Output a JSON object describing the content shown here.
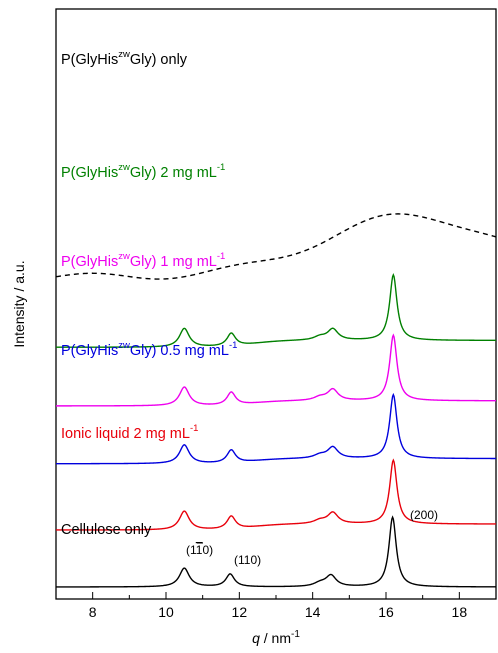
{
  "chart_data": {
    "type": "line",
    "xlabel": "q / nm⁻¹",
    "ylabel": "Intensity / a.u.",
    "xlim": [
      7,
      19
    ],
    "x_ticks": [
      8,
      10,
      12,
      14,
      16,
      18
    ],
    "grid": false,
    "legend": "none; each series labelled directly above its trace",
    "series": [
      {
        "name": "Cellulose only",
        "color": "#000000",
        "dash": "solid",
        "baseline": 0.0,
        "base_step": 0.0,
        "peaks": [
          [
            10.5,
            0.22,
            0.16
          ],
          [
            11.75,
            0.15,
            0.14
          ],
          [
            14.5,
            0.13,
            0.17
          ],
          [
            14.2,
            0.04,
            0.2
          ],
          [
            16.18,
            0.82,
            0.12
          ]
        ]
      },
      {
        "name": "Ionic liquid 2 mg mL⁻¹",
        "color": "#e8000b",
        "dash": "solid",
        "baseline": 0.67,
        "base_step": 0.07,
        "peaks": [
          [
            10.5,
            0.22,
            0.16
          ],
          [
            11.78,
            0.15,
            0.14
          ],
          [
            14.55,
            0.13,
            0.17
          ],
          [
            14.2,
            0.04,
            0.2
          ],
          [
            16.2,
            0.75,
            0.12
          ]
        ]
      },
      {
        "name": "P(GlyHisᶠʷGly) 0.5 mg mL⁻¹",
        "color": "#0000dd",
        "dash": "solid",
        "baseline": 1.45,
        "base_step": 0.06,
        "peaks": [
          [
            10.5,
            0.22,
            0.16
          ],
          [
            11.78,
            0.15,
            0.14
          ],
          [
            14.55,
            0.13,
            0.17
          ],
          [
            14.2,
            0.04,
            0.2
          ],
          [
            16.2,
            0.75,
            0.12
          ]
        ]
      },
      {
        "name": "P(GlyHisᶠʷGly) 1 mg mL⁻¹",
        "color": "#ee00ee",
        "dash": "solid",
        "baseline": 2.13,
        "base_step": 0.06,
        "peaks": [
          [
            10.5,
            0.22,
            0.16
          ],
          [
            11.78,
            0.15,
            0.14
          ],
          [
            14.55,
            0.13,
            0.17
          ],
          [
            14.2,
            0.04,
            0.2
          ],
          [
            16.2,
            0.77,
            0.12
          ]
        ]
      },
      {
        "name": "P(GlyHisᶠʷGly) 2 mg mL⁻¹",
        "color": "#008000",
        "dash": "solid",
        "baseline": 2.82,
        "base_step": 0.08,
        "peaks": [
          [
            10.5,
            0.22,
            0.16
          ],
          [
            11.78,
            0.15,
            0.14
          ],
          [
            14.55,
            0.13,
            0.17
          ],
          [
            14.2,
            0.04,
            0.2
          ],
          [
            16.2,
            0.77,
            0.12
          ]
        ]
      },
      {
        "name": "P(GlyHisᶠʷGly) only",
        "color": "#000000",
        "dash": "dashed",
        "broad": {
          "base": 3.65,
          "amp": 0.72,
          "center": 16.7,
          "width": 3.4,
          "wiggle": 0.04
        }
      }
    ],
    "series_labels": {
      "cellulose": "Cellulose only",
      "ionic": "Ionic liquid 2 mg mL",
      "p05_a": "P(GlyHis",
      "p05_b": "Gly) 0.5 mg mL",
      "p1_a": "P(GlyHis",
      "p1_b": "Gly) 1 mg mL",
      "p2_a": "P(GlyHis",
      "p2_b": "Gly) 2 mg mL",
      "ponly_a": "P(GlyHis",
      "ponly_b": "Gly) only",
      "zw": "zw",
      "minus1": "-1"
    },
    "annotations": {
      "peak_110bar_open": "(1",
      "peak_110bar_digit": "1",
      "peak_110bar_close": "0)",
      "peak_110": "(110)",
      "peak_200": "(200)"
    },
    "axis_text": {
      "ylabel": "Intensity / a.u.",
      "xlabel_q": "q",
      "xlabel_rest": " / nm",
      "xlabel_sup": "-1"
    }
  }
}
